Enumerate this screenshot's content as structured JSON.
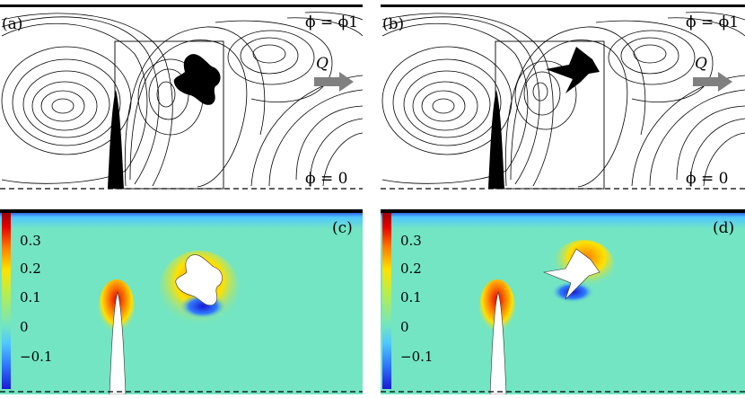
{
  "figure": {
    "panel_a": {
      "label": "(a)",
      "phi_top": "ϕ = ϕ1",
      "phi_bottom": "ϕ = 0",
      "flow_label": "Q"
    },
    "panel_b": {
      "label": "(b)",
      "phi_top": "ϕ = ϕ1",
      "phi_bottom": "ϕ = 0",
      "flow_label": "Q"
    },
    "panel_c": {
      "label": "(c)",
      "colorbar_ticks": [
        "0.3",
        "0.2",
        "0.1",
        "0",
        "−0.1"
      ]
    },
    "panel_d": {
      "label": "(d)",
      "colorbar_ticks": [
        "0.3",
        "0.2",
        "0.1",
        "0",
        "−0.1"
      ]
    },
    "colors": {
      "background_field": "#73e5c2",
      "obstacle_fill": "#000000",
      "arrow_fill": "#808080",
      "colormap": [
        "#1a1ad6",
        "#2f7bff",
        "#50c8ff",
        "#73e5c2",
        "#b9ee4a",
        "#ffe100",
        "#ff8000",
        "#e60000",
        "#9c0000"
      ]
    }
  }
}
